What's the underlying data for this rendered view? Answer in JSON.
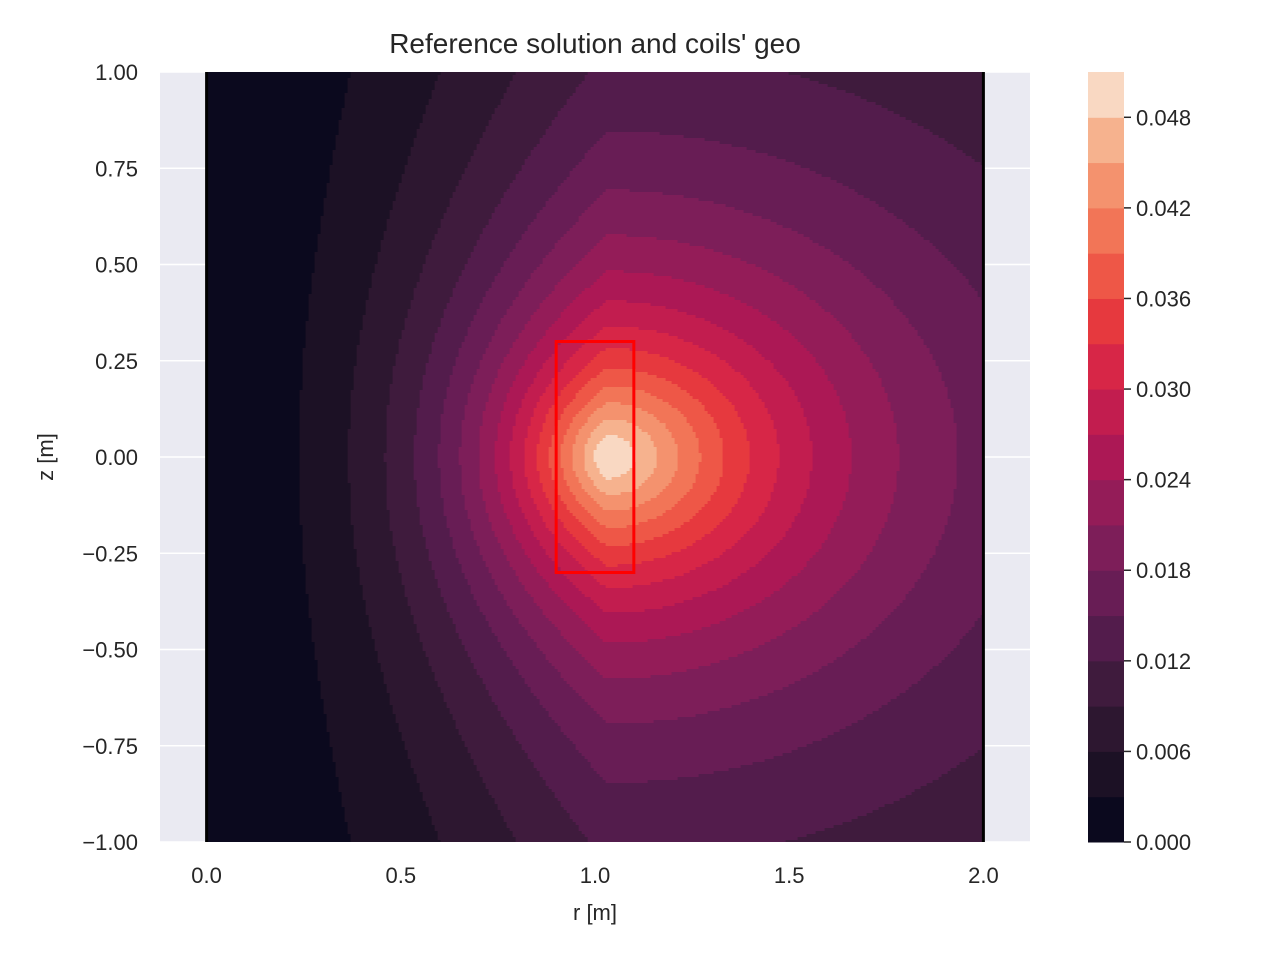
{
  "chart_data": {
    "type": "heatmap",
    "subtype": "filled-contour",
    "title": "Reference solution and coils' geo",
    "xlabel": "r [m]",
    "ylabel": "z [m]",
    "xlim": [
      -0.12,
      2.12
    ],
    "ylim": [
      -1.0,
      1.0
    ],
    "x_ticks": [
      0.0,
      0.5,
      1.0,
      1.5,
      2.0
    ],
    "x_tick_labels": [
      "0.0",
      "0.5",
      "1.0",
      "1.5",
      "2.0"
    ],
    "y_ticks": [
      1.0,
      0.75,
      0.5,
      0.25,
      0.0,
      -0.25,
      -0.5,
      -0.75,
      -1.0
    ],
    "y_tick_labels": [
      "1.00",
      "0.75",
      "0.50",
      "0.25",
      "0.00",
      "−0.25",
      "−0.50",
      "−0.75",
      "−1.00"
    ],
    "grid": true,
    "background_color": "#eaeaf2",
    "colormap": "rocket",
    "domain": {
      "r": [
        0.0,
        2.0
      ],
      "z": [
        -1.0,
        1.0
      ]
    },
    "field": {
      "peak_value": 0.051,
      "peak_location": {
        "r": 1.03,
        "z": 0.0
      }
    },
    "contour_levels": [
      0.0,
      0.003,
      0.006,
      0.009,
      0.012,
      0.015,
      0.018,
      0.021,
      0.024,
      0.027,
      0.03,
      0.033,
      0.036,
      0.039,
      0.042,
      0.045,
      0.048,
      0.051
    ],
    "colorbar": {
      "range": [
        0.0,
        0.051
      ],
      "ticks": [
        0.0,
        0.006,
        0.012,
        0.018,
        0.024,
        0.03,
        0.036,
        0.042,
        0.048
      ],
      "tick_labels": [
        "0.000",
        "0.006",
        "0.012",
        "0.018",
        "0.024",
        "0.030",
        "0.036",
        "0.042",
        "0.048"
      ]
    },
    "coil": {
      "color": "#ff0000",
      "r": [
        0.9,
        1.1
      ],
      "z": [
        -0.3,
        0.3
      ]
    },
    "boundary_lines": {
      "color": "#000000",
      "r": [
        0.0,
        2.0
      ]
    }
  }
}
